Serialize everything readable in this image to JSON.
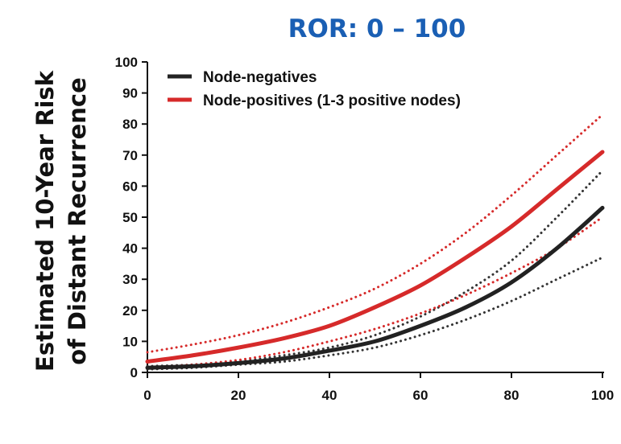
{
  "chart_data": {
    "type": "line",
    "title": "ROR: 0 – 100",
    "ylabel": [
      "Estimated 10-Year Risk",
      "of Distant Recurrence"
    ],
    "xlabel": "",
    "xlim": [
      0,
      100
    ],
    "ylim": [
      0,
      100
    ],
    "xticks": [
      "0",
      "20",
      "40",
      "60",
      "80",
      "100"
    ],
    "yticks": [
      "0",
      "10",
      "20",
      "30",
      "40",
      "50",
      "60",
      "70",
      "80",
      "90",
      "100"
    ],
    "legend_position": "top-left",
    "x": [
      0,
      10,
      20,
      30,
      40,
      50,
      60,
      70,
      80,
      90,
      100
    ],
    "series": [
      {
        "name": "Node-negatives",
        "color": "#222222",
        "style": "solid",
        "values": [
          1.5,
          2,
          3,
          4.5,
          7,
          10,
          15,
          21,
          29,
          40,
          53
        ]
      },
      {
        "color": "#333333",
        "style": "dotted",
        "values": [
          2,
          2.5,
          3.5,
          5.5,
          8,
          12,
          18,
          26,
          36,
          50,
          65
        ]
      },
      {
        "color": "#333333",
        "style": "dotted",
        "values": [
          1,
          1.5,
          2.5,
          3.5,
          5.5,
          8,
          12,
          17,
          23,
          30,
          37
        ]
      },
      {
        "name": "Node-positives (1-3 positive nodes)",
        "color": "#d62a2a",
        "style": "solid",
        "values": [
          3.5,
          5.5,
          8,
          11,
          15,
          21,
          28,
          37,
          47,
          59,
          71
        ]
      },
      {
        "color": "#d62a2a",
        "style": "dotted",
        "values": [
          6.5,
          9,
          12,
          16,
          21,
          27,
          35,
          45,
          57,
          70,
          83
        ]
      },
      {
        "color": "#d62a2a",
        "style": "dotted",
        "values": [
          1.5,
          2.5,
          4,
          6.5,
          10,
          14,
          19,
          25,
          32,
          40,
          50
        ]
      }
    ]
  }
}
